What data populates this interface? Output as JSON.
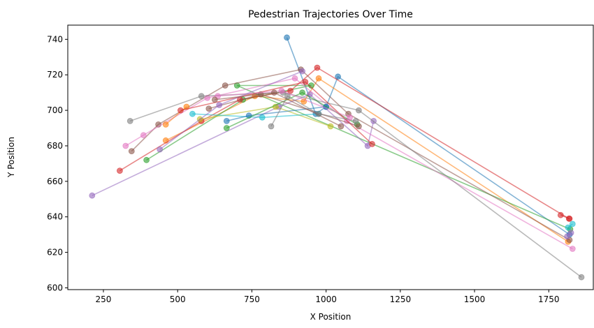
{
  "chart_data": {
    "type": "line",
    "title": "Pedestrian Trajectories Over Time",
    "xlabel": "X Position",
    "ylabel": "Y Position",
    "xlim": [
      130,
      1900
    ],
    "ylim": [
      599,
      748
    ],
    "xticks": [
      250,
      500,
      750,
      1000,
      1250,
      1500,
      1750
    ],
    "yticks": [
      600,
      620,
      640,
      660,
      680,
      700,
      720,
      740
    ],
    "grid": false,
    "legend": "none",
    "series": [
      {
        "color": "#1f77b4",
        "points": [
          [
            868,
            741
          ],
          [
            965,
            698
          ],
          [
            1000,
            702
          ],
          [
            1040,
            719
          ],
          [
            1820,
            630
          ]
        ]
      },
      {
        "color": "#ff7f0e",
        "points": [
          [
            460,
            683
          ],
          [
            760,
            708
          ],
          [
            925,
            705
          ],
          [
            975,
            718
          ],
          [
            1815,
            626
          ]
        ]
      },
      {
        "color": "#2ca02c",
        "points": [
          [
            395,
            672
          ],
          [
            720,
            706
          ],
          [
            950,
            714
          ],
          [
            700,
            714
          ],
          [
            1822,
            633
          ]
        ]
      },
      {
        "color": "#d62728",
        "points": [
          [
            305,
            666
          ],
          [
            580,
            694
          ],
          [
            710,
            706
          ],
          [
            880,
            711
          ],
          [
            970,
            724
          ],
          [
            1818,
            639
          ]
        ]
      },
      {
        "color": "#9467bd",
        "points": [
          [
            212,
            652
          ],
          [
            840,
            702
          ],
          [
            945,
            709
          ],
          [
            1140,
            680
          ],
          [
            1160,
            694
          ]
        ]
      },
      {
        "color": "#8c564b",
        "points": [
          [
            345,
            677
          ],
          [
            435,
            692
          ],
          [
            660,
            714
          ],
          [
            915,
            723
          ],
          [
            1075,
            698
          ],
          [
            1820,
            627
          ]
        ]
      },
      {
        "color": "#e377c2",
        "points": [
          [
            325,
            680
          ],
          [
            385,
            686
          ],
          [
            600,
            707
          ],
          [
            895,
            718
          ],
          [
            1070,
            694
          ],
          [
            1830,
            622
          ]
        ]
      },
      {
        "color": "#7f7f7f",
        "points": [
          [
            340,
            694
          ],
          [
            580,
            708
          ],
          [
            855,
            710
          ],
          [
            1110,
            700
          ],
          [
            1860,
            606
          ]
        ]
      },
      {
        "color": "#bcbd22",
        "points": [
          [
            575,
            695
          ],
          [
            830,
            702
          ],
          [
            1015,
            691
          ]
        ]
      },
      {
        "color": "#17becf",
        "points": [
          [
            550,
            698
          ],
          [
            785,
            696
          ],
          [
            975,
            698
          ]
        ]
      },
      {
        "color": "#1f77b4",
        "points": [
          [
            665,
            694
          ],
          [
            740,
            697
          ],
          [
            1000,
            702
          ]
        ]
      },
      {
        "color": "#ff7f0e",
        "points": [
          [
            460,
            692
          ],
          [
            530,
            702
          ]
        ]
      },
      {
        "color": "#2ca02c",
        "points": [
          [
            665,
            690
          ],
          [
            920,
            710
          ],
          [
            1105,
            692
          ]
        ]
      },
      {
        "color": "#d62728",
        "points": [
          [
            510,
            700
          ],
          [
            930,
            716
          ],
          [
            1155,
            681
          ]
        ]
      },
      {
        "color": "#8c564b",
        "points": [
          [
            605,
            701
          ],
          [
            780,
            709
          ],
          [
            1110,
            691
          ]
        ]
      },
      {
        "color": "#7f7f7f",
        "points": [
          [
            815,
            691
          ],
          [
            870,
            708
          ],
          [
            975,
            698
          ],
          [
            1100,
            694
          ]
        ]
      },
      {
        "color": "#e377c2",
        "points": [
          [
            635,
            708
          ],
          [
            850,
            711
          ],
          [
            1080,
            696
          ]
        ]
      },
      {
        "color": "#9467bd",
        "points": [
          [
            440,
            678
          ],
          [
            640,
            703
          ],
          [
            920,
            722
          ]
        ]
      },
      {
        "color": "#8c564b",
        "points": [
          [
            625,
            706
          ],
          [
            825,
            710
          ],
          [
            1050,
            691
          ]
        ]
      },
      {
        "color": "#d62728",
        "points": [
          [
            1790,
            641
          ],
          [
            1820,
            639
          ]
        ]
      },
      {
        "color": "#17becf",
        "points": [
          [
            1815,
            634
          ],
          [
            1830,
            636
          ]
        ]
      },
      {
        "color": "#9467bd",
        "points": [
          [
            1812,
            629
          ],
          [
            1825,
            631
          ]
        ]
      }
    ]
  }
}
